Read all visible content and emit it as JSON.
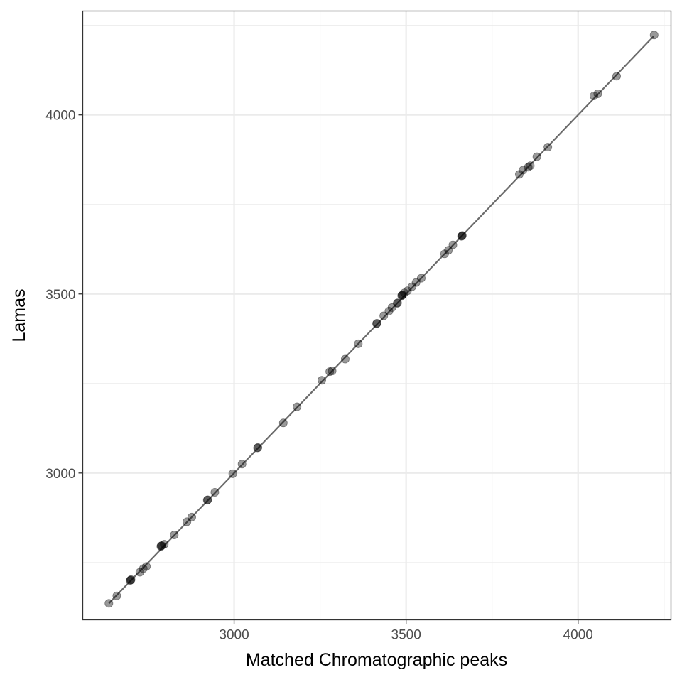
{
  "chart_data": {
    "type": "scatter",
    "title": "",
    "xlabel": "Matched Chromatographic peaks",
    "ylabel": "Lamas",
    "xlim": [
      2560,
      4270
    ],
    "ylim": [
      2590,
      4290
    ],
    "x_ticks": [
      3000,
      3500,
      4000
    ],
    "y_ticks": [
      3000,
      3500,
      4000
    ],
    "x_minor_ticks": [
      2750,
      3250,
      3750,
      4250
    ],
    "y_minor_ticks": [
      2750,
      3250,
      3750,
      4250
    ],
    "grid": true,
    "legend": "none",
    "point_color": "#000000",
    "point_alpha": 0.4,
    "line_color": "#6b6b6b",
    "fit_line": {
      "x": [
        2636,
        4220
      ],
      "y": [
        2636,
        4220
      ],
      "label": "identity line y = x"
    },
    "series": [
      {
        "name": "matched peaks",
        "points": [
          {
            "x": 2636,
            "y": 2636,
            "n": 1
          },
          {
            "x": 2659,
            "y": 2657,
            "n": 1
          },
          {
            "x": 2698,
            "y": 2700,
            "n": 3
          },
          {
            "x": 2726,
            "y": 2723,
            "n": 1
          },
          {
            "x": 2736,
            "y": 2733,
            "n": 1
          },
          {
            "x": 2745,
            "y": 2739,
            "n": 1
          },
          {
            "x": 2787,
            "y": 2795,
            "n": 3
          },
          {
            "x": 2797,
            "y": 2801,
            "n": 1
          },
          {
            "x": 2826,
            "y": 2827,
            "n": 1
          },
          {
            "x": 2863,
            "y": 2864,
            "n": 1
          },
          {
            "x": 2877,
            "y": 2877,
            "n": 1
          },
          {
            "x": 2922,
            "y": 2924,
            "n": 2
          },
          {
            "x": 2944,
            "y": 2946,
            "n": 1
          },
          {
            "x": 2996,
            "y": 2998,
            "n": 1
          },
          {
            "x": 3023,
            "y": 3025,
            "n": 1
          },
          {
            "x": 3068,
            "y": 3070,
            "n": 2
          },
          {
            "x": 3143,
            "y": 3140,
            "n": 1
          },
          {
            "x": 3183,
            "y": 3185,
            "n": 1
          },
          {
            "x": 3255,
            "y": 3259,
            "n": 1
          },
          {
            "x": 3278,
            "y": 3283,
            "n": 1
          },
          {
            "x": 3285,
            "y": 3285,
            "n": 1
          },
          {
            "x": 3323,
            "y": 3318,
            "n": 1
          },
          {
            "x": 3361,
            "y": 3361,
            "n": 1
          },
          {
            "x": 3414,
            "y": 3417,
            "n": 2
          },
          {
            "x": 3435,
            "y": 3439,
            "n": 1
          },
          {
            "x": 3450,
            "y": 3452,
            "n": 1
          },
          {
            "x": 3459,
            "y": 3462,
            "n": 1
          },
          {
            "x": 3474,
            "y": 3474,
            "n": 2
          },
          {
            "x": 3487,
            "y": 3495,
            "n": 3
          },
          {
            "x": 3495,
            "y": 3503,
            "n": 1
          },
          {
            "x": 3504,
            "y": 3509,
            "n": 1
          },
          {
            "x": 3517,
            "y": 3520,
            "n": 1
          },
          {
            "x": 3529,
            "y": 3532,
            "n": 1
          },
          {
            "x": 3544,
            "y": 3544,
            "n": 1
          },
          {
            "x": 3612,
            "y": 3612,
            "n": 1
          },
          {
            "x": 3623,
            "y": 3622,
            "n": 1
          },
          {
            "x": 3636,
            "y": 3637,
            "n": 1
          },
          {
            "x": 3661,
            "y": 3661,
            "n": 3
          },
          {
            "x": 3829,
            "y": 3834,
            "n": 1
          },
          {
            "x": 3840,
            "y": 3846,
            "n": 1
          },
          {
            "x": 3855,
            "y": 3854,
            "n": 1
          },
          {
            "x": 3861,
            "y": 3858,
            "n": 1
          },
          {
            "x": 3880,
            "y": 3883,
            "n": 1
          },
          {
            "x": 3912,
            "y": 3910,
            "n": 1
          },
          {
            "x": 4046,
            "y": 4053,
            "n": 1
          },
          {
            "x": 4057,
            "y": 4059,
            "n": 1
          },
          {
            "x": 4112,
            "y": 4108,
            "n": 1
          },
          {
            "x": 4221,
            "y": 4223,
            "n": 1
          }
        ]
      }
    ]
  },
  "labels": {
    "x_axis_title": "Matched Chromatographic peaks",
    "y_axis_title": "Lamas"
  }
}
